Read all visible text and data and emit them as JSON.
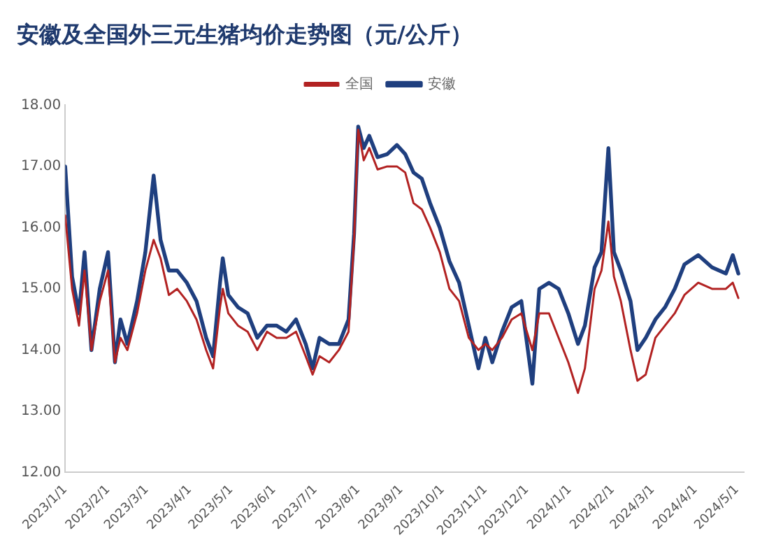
{
  "chart_data": {
    "type": "line",
    "title": "安徽及全国外三元生猪均价走势图（元/公斤）",
    "legend": "top",
    "marker": "none",
    "line_style": "solid",
    "x": [
      "2023-01-01",
      "2023-01-06",
      "2023-01-11",
      "2023-01-15",
      "2023-01-20",
      "2023-01-26",
      "2023-02-01",
      "2023-02-06",
      "2023-02-10",
      "2023-02-15",
      "2023-02-22",
      "2023-02-28",
      "2023-03-06",
      "2023-03-11",
      "2023-03-17",
      "2023-03-23",
      "2023-03-30",
      "2023-04-06",
      "2023-04-13",
      "2023-04-18",
      "2023-04-23",
      "2023-04-25",
      "2023-04-29",
      "2023-05-06",
      "2023-05-13",
      "2023-05-20",
      "2023-05-27",
      "2023-06-03",
      "2023-06-10",
      "2023-06-17",
      "2023-06-24",
      "2023-06-29",
      "2023-07-04",
      "2023-07-11",
      "2023-07-18",
      "2023-07-25",
      "2023-07-29",
      "2023-08-01",
      "2023-08-05",
      "2023-08-09",
      "2023-08-15",
      "2023-08-22",
      "2023-08-29",
      "2023-09-04",
      "2023-09-10",
      "2023-09-16",
      "2023-09-22",
      "2023-09-29",
      "2023-10-06",
      "2023-10-13",
      "2023-10-20",
      "2023-10-27",
      "2023-11-01",
      "2023-11-06",
      "2023-11-13",
      "2023-11-20",
      "2023-11-27",
      "2023-12-05",
      "2023-12-10",
      "2023-12-17",
      "2023-12-24",
      "2023-12-31",
      "2024-01-07",
      "2024-01-12",
      "2024-01-19",
      "2024-01-24",
      "2024-01-29",
      "2024-02-02",
      "2024-02-07",
      "2024-02-14",
      "2024-02-19",
      "2024-02-25",
      "2024-03-03",
      "2024-03-10",
      "2024-03-17",
      "2024-03-24",
      "2024-04-03",
      "2024-04-13",
      "2024-04-23",
      "2024-04-28",
      "2024-05-02"
    ],
    "series": [
      {
        "name": "全国",
        "color": "#b22222",
        "values": [
          16.2,
          15.0,
          14.4,
          15.3,
          14.0,
          14.8,
          15.3,
          13.8,
          14.2,
          14.0,
          14.6,
          15.3,
          15.8,
          15.5,
          14.9,
          15.0,
          14.8,
          14.5,
          14.0,
          13.7,
          14.7,
          15.0,
          14.6,
          14.4,
          14.3,
          14.0,
          14.3,
          14.2,
          14.2,
          14.3,
          13.9,
          13.6,
          13.9,
          13.8,
          14.0,
          14.3,
          15.8,
          17.6,
          17.1,
          17.3,
          16.95,
          17.0,
          17.0,
          16.9,
          16.4,
          16.3,
          16.0,
          15.6,
          15.0,
          14.8,
          14.2,
          14.0,
          14.1,
          14.0,
          14.2,
          14.5,
          14.6,
          14.0,
          14.6,
          14.6,
          14.2,
          13.8,
          13.3,
          13.7,
          15.0,
          15.3,
          16.1,
          15.2,
          14.8,
          14.0,
          13.5,
          13.6,
          14.2,
          14.4,
          14.6,
          14.9,
          15.1,
          15.0,
          15.0,
          15.1,
          14.85
        ]
      },
      {
        "name": "安徽",
        "color": "#1f3f7f",
        "values": [
          17.0,
          15.2,
          14.6,
          15.6,
          14.0,
          15.0,
          15.6,
          13.8,
          14.5,
          14.1,
          14.8,
          15.6,
          16.85,
          15.8,
          15.3,
          15.3,
          15.1,
          14.8,
          14.2,
          13.9,
          15.1,
          15.5,
          14.9,
          14.7,
          14.6,
          14.2,
          14.4,
          14.4,
          14.3,
          14.5,
          14.1,
          13.7,
          14.2,
          14.1,
          14.1,
          14.5,
          15.9,
          17.65,
          17.3,
          17.5,
          17.15,
          17.2,
          17.35,
          17.2,
          16.9,
          16.8,
          16.4,
          16.0,
          15.45,
          15.1,
          14.4,
          13.7,
          14.2,
          13.8,
          14.3,
          14.7,
          14.8,
          13.45,
          15.0,
          15.1,
          15.0,
          14.6,
          14.1,
          14.4,
          15.35,
          15.6,
          17.3,
          15.6,
          15.3,
          14.8,
          14.0,
          14.2,
          14.5,
          14.7,
          15.0,
          15.4,
          15.55,
          15.35,
          15.25,
          15.55,
          15.25
        ]
      }
    ],
    "xlim": [
      "2023-01-01",
      "2024-05-06"
    ],
    "xticks": [
      {
        "value": "2023-01-01",
        "label": "2023/1/1"
      },
      {
        "value": "2023-02-01",
        "label": "2023/2/1"
      },
      {
        "value": "2023-03-01",
        "label": "2023/3/1"
      },
      {
        "value": "2023-04-01",
        "label": "2023/4/1"
      },
      {
        "value": "2023-05-01",
        "label": "2023/5/1"
      },
      {
        "value": "2023-06-01",
        "label": "2023/6/1"
      },
      {
        "value": "2023-07-01",
        "label": "2023/7/1"
      },
      {
        "value": "2023-08-01",
        "label": "2023/8/1"
      },
      {
        "value": "2023-09-01",
        "label": "2023/9/1"
      },
      {
        "value": "2023-10-01",
        "label": "2023/10/1"
      },
      {
        "value": "2023-11-01",
        "label": "2023/11/1"
      },
      {
        "value": "2023-12-01",
        "label": "2023/12/1"
      },
      {
        "value": "2024-01-01",
        "label": "2024/1/1"
      },
      {
        "value": "2024-02-01",
        "label": "2024/2/1"
      },
      {
        "value": "2024-03-01",
        "label": "2024/3/1"
      },
      {
        "value": "2024-04-01",
        "label": "2024/4/1"
      },
      {
        "value": "2024-05-01",
        "label": "2024/5/1"
      }
    ],
    "ylim": [
      12,
      18
    ],
    "yticks": [
      {
        "value": 12,
        "label": "12.00"
      },
      {
        "value": 13,
        "label": "13.00"
      },
      {
        "value": 14,
        "label": "14.00"
      },
      {
        "value": 15,
        "label": "15.00"
      },
      {
        "value": 16,
        "label": "16.00"
      },
      {
        "value": 17,
        "label": "17.00"
      },
      {
        "value": 18,
        "label": "18.00"
      }
    ]
  }
}
